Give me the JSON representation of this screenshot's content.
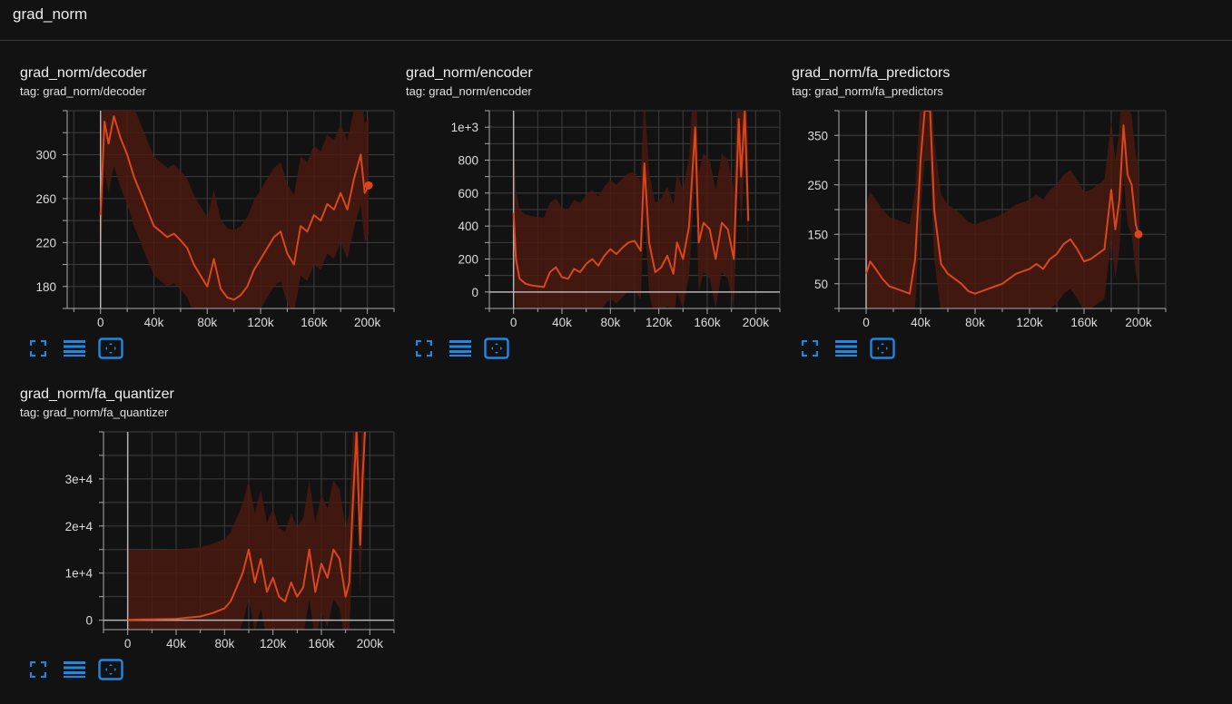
{
  "group": {
    "title": "grad_norm"
  },
  "theme": {
    "line_color": "#d9471c",
    "band_color": "#4a1a10",
    "grid_color": "#3e3e3e",
    "axis_color": "#aaaaaa",
    "icon_color": "#1e88e5"
  },
  "icons": {
    "fullscreen": "fullscreen-icon",
    "legend": "list-icon",
    "fit": "fit-domain-icon"
  },
  "cards": [
    {
      "title": "grad_norm/decoder",
      "tag": "tag: grad_norm/decoder",
      "chart_data": {
        "type": "line",
        "xlim": [
          -25000,
          220000
        ],
        "ylim": [
          160,
          340
        ],
        "xticks": [
          0,
          40000,
          80000,
          120000,
          160000,
          200000
        ],
        "xtick_labels": [
          "0",
          "40k",
          "80k",
          "120k",
          "160k",
          "200k"
        ],
        "yticks": [
          180,
          220,
          260,
          300
        ],
        "ytick_labels": [
          "180",
          "220",
          "260",
          "300"
        ],
        "end_marker": true,
        "series": [
          {
            "x": [
              0,
              3000,
              6000,
              10000,
              15000,
              20000,
              25000,
              30000,
              35000,
              40000,
              45000,
              50000,
              55000,
              60000,
              65000,
              70000,
              75000,
              80000,
              85000,
              90000,
              95000,
              100000,
              105000,
              110000,
              115000,
              120000,
              125000,
              130000,
              135000,
              140000,
              145000,
              150000,
              155000,
              160000,
              165000,
              170000,
              175000,
              180000,
              185000,
              190000,
              195000,
              198000,
              201000
            ],
            "y": [
              245,
              330,
              310,
              335,
              315,
              300,
              280,
              265,
              250,
              235,
              230,
              225,
              228,
              222,
              215,
              200,
              190,
              180,
              205,
              178,
              170,
              168,
              172,
              180,
              195,
              205,
              215,
              225,
              230,
              210,
              200,
              235,
              230,
              245,
              240,
              255,
              250,
              265,
              250,
              278,
              300,
              265,
              272
            ]
          }
        ]
      }
    },
    {
      "title": "grad_norm/encoder",
      "tag": "tag: grad_norm/encoder",
      "chart_data": {
        "type": "line",
        "xlim": [
          -20000,
          220000
        ],
        "ylim": [
          -100,
          1100
        ],
        "xticks": [
          0,
          40000,
          80000,
          120000,
          160000,
          200000
        ],
        "xtick_labels": [
          "0",
          "40k",
          "80k",
          "120k",
          "160k",
          "200k"
        ],
        "yticks": [
          0,
          200,
          400,
          600,
          800,
          1000
        ],
        "ytick_labels": [
          "0",
          "200",
          "400",
          "600",
          "800",
          "1e+3"
        ],
        "end_marker": false,
        "series": [
          {
            "x": [
              0,
              2000,
              5000,
              10000,
              15000,
              20000,
              25000,
              30000,
              35000,
              40000,
              45000,
              50000,
              55000,
              60000,
              65000,
              70000,
              75000,
              80000,
              85000,
              90000,
              95000,
              100000,
              105000,
              108000,
              112000,
              117000,
              122000,
              127000,
              132000,
              135000,
              140000,
              145000,
              150000,
              153000,
              157000,
              162000,
              167000,
              172000,
              177000,
              182000,
              186000,
              188000,
              191000,
              194000
            ],
            "y": [
              480,
              200,
              80,
              50,
              40,
              35,
              30,
              120,
              150,
              90,
              80,
              140,
              120,
              170,
              200,
              160,
              220,
              260,
              230,
              270,
              300,
              310,
              250,
              780,
              300,
              120,
              150,
              220,
              110,
              300,
              200,
              400,
              1000,
              300,
              420,
              380,
              200,
              420,
              380,
              200,
              1050,
              700,
              1100,
              430
            ]
          }
        ]
      }
    },
    {
      "title": "grad_norm/fa_predictors",
      "tag": "tag: grad_norm/fa_predictors",
      "chart_data": {
        "type": "line",
        "xlim": [
          -20000,
          220000
        ],
        "ylim": [
          0,
          400
        ],
        "xticks": [
          0,
          40000,
          80000,
          120000,
          160000,
          200000
        ],
        "xtick_labels": [
          "0",
          "40k",
          "80k",
          "120k",
          "160k",
          "200k"
        ],
        "yticks": [
          50,
          150,
          250,
          350
        ],
        "ytick_labels": [
          "50",
          "150",
          "250",
          "350"
        ],
        "end_marker": true,
        "series": [
          {
            "x": [
              0,
              3000,
              7000,
              12000,
              17000,
              22000,
              27000,
              32000,
              36000,
              40000,
              43000,
              47000,
              50000,
              55000,
              60000,
              65000,
              70000,
              75000,
              80000,
              85000,
              90000,
              95000,
              100000,
              110000,
              120000,
              125000,
              130000,
              135000,
              140000,
              145000,
              150000,
              155000,
              160000,
              165000,
              170000,
              175000,
              180000,
              183000,
              186000,
              189000,
              192000,
              195000,
              198000,
              200000
            ],
            "y": [
              70,
              95,
              80,
              60,
              45,
              40,
              35,
              30,
              100,
              300,
              400,
              400,
              200,
              90,
              70,
              60,
              50,
              35,
              30,
              35,
              40,
              45,
              50,
              70,
              80,
              90,
              80,
              100,
              110,
              130,
              140,
              120,
              95,
              100,
              110,
              120,
              240,
              160,
              220,
              370,
              270,
              250,
              170,
              150
            ]
          }
        ]
      }
    },
    {
      "title": "grad_norm/fa_quantizer",
      "tag": "tag: grad_norm/fa_quantizer",
      "chart_data": {
        "type": "line",
        "xlim": [
          -20000,
          220000
        ],
        "ylim": [
          -2000,
          40000
        ],
        "xticks": [
          0,
          40000,
          80000,
          120000,
          160000,
          200000
        ],
        "xtick_labels": [
          "0",
          "40k",
          "80k",
          "120k",
          "160k",
          "200k"
        ],
        "yticks": [
          0,
          10000,
          20000,
          30000
        ],
        "ytick_labels": [
          "0",
          "1e+4",
          "2e+4",
          "3e+4"
        ],
        "end_marker": false,
        "series": [
          {
            "x": [
              0,
              20000,
              40000,
              60000,
              70000,
              80000,
              85000,
              90000,
              95000,
              100000,
              105000,
              110000,
              115000,
              120000,
              125000,
              130000,
              135000,
              140000,
              145000,
              150000,
              155000,
              160000,
              165000,
              170000,
              175000,
              180000,
              183000,
              186000,
              189000,
              192000,
              194000,
              196000
            ],
            "y": [
              100,
              200,
              300,
              800,
              1500,
              2500,
              4000,
              7000,
              10000,
              15000,
              8000,
              13000,
              6000,
              9000,
              5000,
              4000,
              8000,
              5000,
              7000,
              15000,
              6000,
              12000,
              9000,
              15000,
              13000,
              5000,
              8000,
              25000,
              40000,
              16000,
              30000,
              40000
            ]
          }
        ]
      }
    }
  ]
}
